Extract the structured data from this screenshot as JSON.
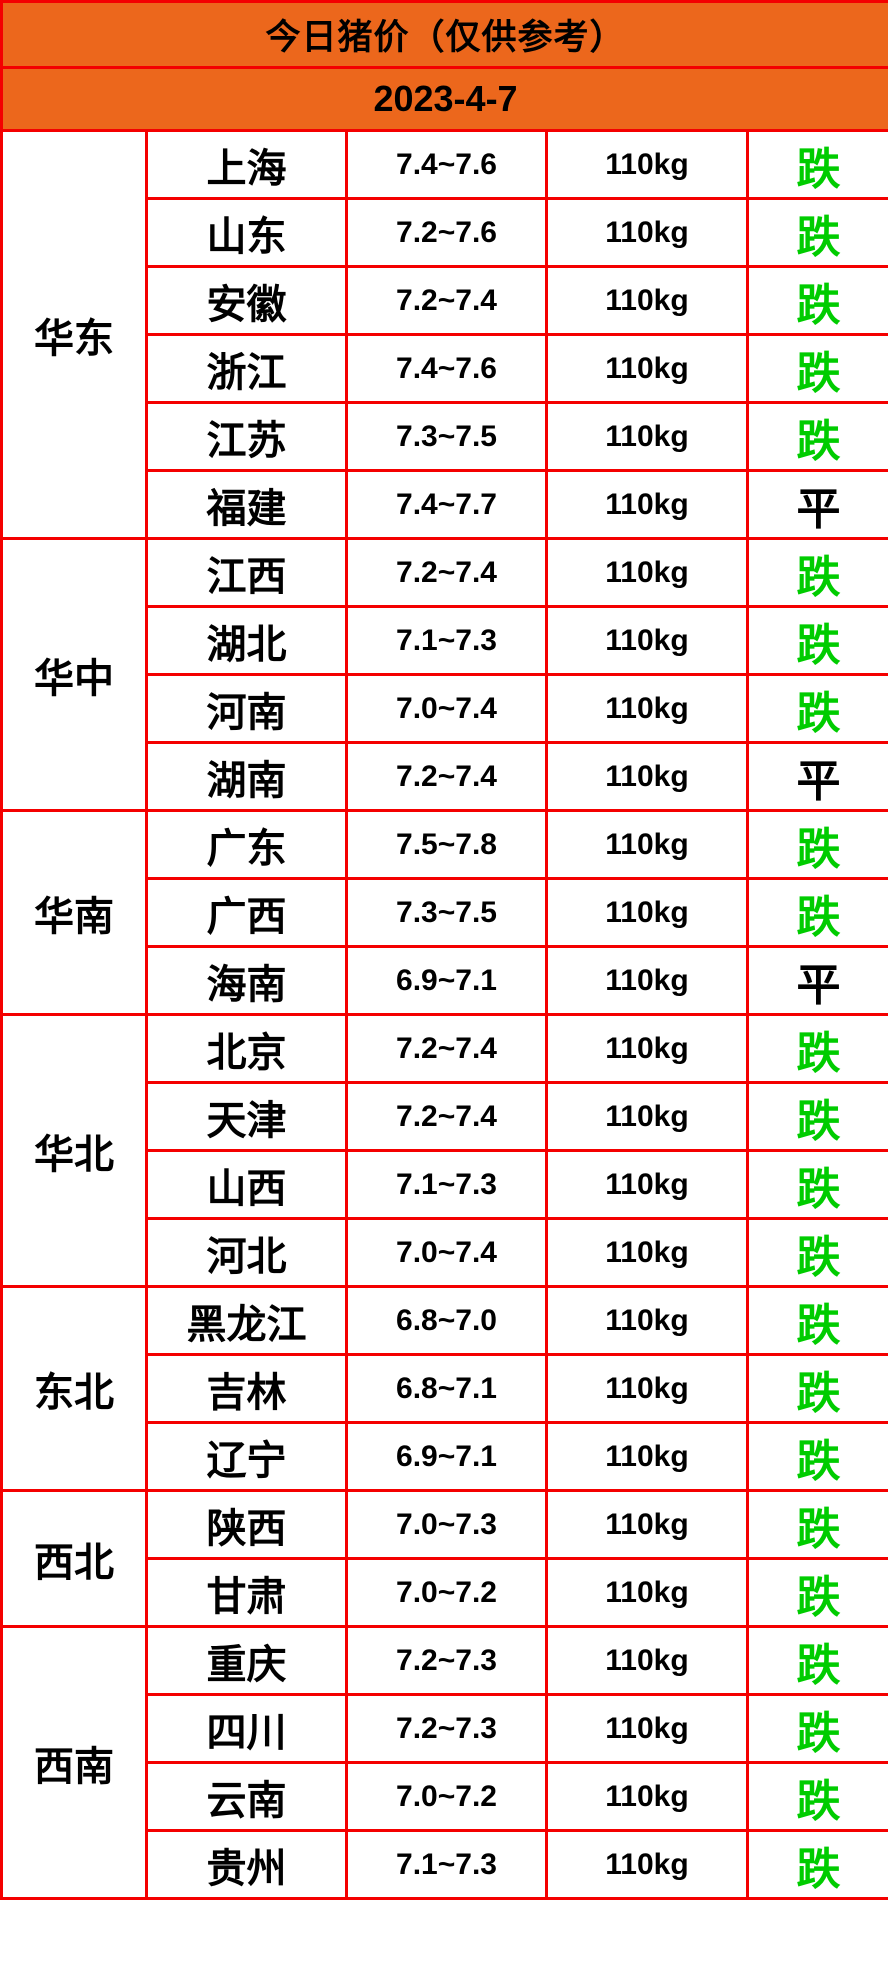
{
  "chart_data": {
    "type": "table",
    "title": "今日猪价（仅供参考）",
    "date": "2023-4-7",
    "unit_weight": "110kg",
    "groups": [
      {
        "region": "华东",
        "rows": [
          {
            "province": "上海",
            "price": "7.4~7.6",
            "weight": "110kg",
            "status": "跌"
          },
          {
            "province": "山东",
            "price": "7.2~7.6",
            "weight": "110kg",
            "status": "跌"
          },
          {
            "province": "安徽",
            "price": "7.2~7.4",
            "weight": "110kg",
            "status": "跌"
          },
          {
            "province": "浙江",
            "price": "7.4~7.6",
            "weight": "110kg",
            "status": "跌"
          },
          {
            "province": "江苏",
            "price": "7.3~7.5",
            "weight": "110kg",
            "status": "跌"
          },
          {
            "province": "福建",
            "price": "7.4~7.7",
            "weight": "110kg",
            "status": "平"
          }
        ]
      },
      {
        "region": "华中",
        "rows": [
          {
            "province": "江西",
            "price": "7.2~7.4",
            "weight": "110kg",
            "status": "跌"
          },
          {
            "province": "湖北",
            "price": "7.1~7.3",
            "weight": "110kg",
            "status": "跌"
          },
          {
            "province": "河南",
            "price": "7.0~7.4",
            "weight": "110kg",
            "status": "跌"
          },
          {
            "province": "湖南",
            "price": "7.2~7.4",
            "weight": "110kg",
            "status": "平"
          }
        ]
      },
      {
        "region": "华南",
        "rows": [
          {
            "province": "广东",
            "price": "7.5~7.8",
            "weight": "110kg",
            "status": "跌"
          },
          {
            "province": "广西",
            "price": "7.3~7.5",
            "weight": "110kg",
            "status": "跌"
          },
          {
            "province": "海南",
            "price": "6.9~7.1",
            "weight": "110kg",
            "status": "平"
          }
        ]
      },
      {
        "region": "华北",
        "rows": [
          {
            "province": "北京",
            "price": "7.2~7.4",
            "weight": "110kg",
            "status": "跌"
          },
          {
            "province": "天津",
            "price": "7.2~7.4",
            "weight": "110kg",
            "status": "跌"
          },
          {
            "province": "山西",
            "price": "7.1~7.3",
            "weight": "110kg",
            "status": "跌"
          },
          {
            "province": "河北",
            "price": "7.0~7.4",
            "weight": "110kg",
            "status": "跌"
          }
        ]
      },
      {
        "region": "东北",
        "rows": [
          {
            "province": "黑龙江",
            "price": "6.8~7.0",
            "weight": "110kg",
            "status": "跌"
          },
          {
            "province": "吉林",
            "price": "6.8~7.1",
            "weight": "110kg",
            "status": "跌"
          },
          {
            "province": "辽宁",
            "price": "6.9~7.1",
            "weight": "110kg",
            "status": "跌"
          }
        ]
      },
      {
        "region": "西北",
        "rows": [
          {
            "province": "陕西",
            "price": "7.0~7.3",
            "weight": "110kg",
            "status": "跌"
          },
          {
            "province": "甘肃",
            "price": "7.0~7.2",
            "weight": "110kg",
            "status": "跌"
          }
        ]
      },
      {
        "region": "西南",
        "rows": [
          {
            "province": "重庆",
            "price": "7.2~7.3",
            "weight": "110kg",
            "status": "跌"
          },
          {
            "province": "四川",
            "price": "7.2~7.3",
            "weight": "110kg",
            "status": "跌"
          },
          {
            "province": "云南",
            "price": "7.0~7.2",
            "weight": "110kg",
            "status": "跌"
          },
          {
            "province": "贵州",
            "price": "7.1~7.3",
            "weight": "110kg",
            "status": "跌"
          }
        ]
      }
    ]
  },
  "colors": {
    "header_bg": "#EC671C",
    "grid_border": "#F40000",
    "status_fall": "#00CC00",
    "status_flat": "#000000",
    "text": "#000000"
  }
}
